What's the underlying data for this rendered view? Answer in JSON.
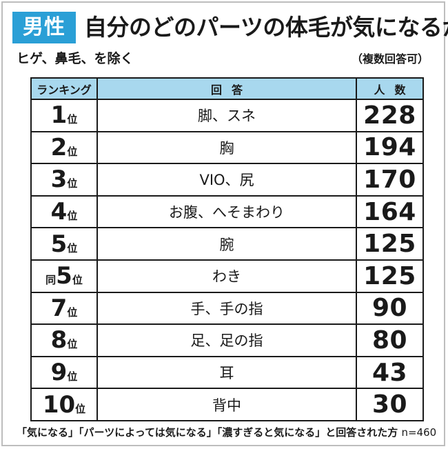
{
  "header": {
    "badge": "男性",
    "title": "自分のどのパーツの体毛が気になるか",
    "subtitle": "ヒゲ、鼻毛、を除く",
    "note": "（複数回答可）"
  },
  "table": {
    "headers": {
      "rank": "ランキング",
      "answer": "回答",
      "count": "人数"
    },
    "rank_unit": "位",
    "rows": [
      {
        "prefix": "",
        "rank": "1",
        "answer": "脚、スネ",
        "count": "228"
      },
      {
        "prefix": "",
        "rank": "2",
        "answer": "胸",
        "count": "194"
      },
      {
        "prefix": "",
        "rank": "3",
        "answer": "VIO、尻",
        "count": "170"
      },
      {
        "prefix": "",
        "rank": "4",
        "answer": "お腹、へそまわり",
        "count": "164"
      },
      {
        "prefix": "",
        "rank": "5",
        "answer": "腕",
        "count": "125"
      },
      {
        "prefix": "同",
        "rank": "5",
        "answer": "わき",
        "count": "125"
      },
      {
        "prefix": "",
        "rank": "7",
        "answer": "手、手の指",
        "count": "90"
      },
      {
        "prefix": "",
        "rank": "8",
        "answer": "足、足の指",
        "count": "80"
      },
      {
        "prefix": "",
        "rank": "9",
        "answer": "耳",
        "count": "43"
      },
      {
        "prefix": "",
        "rank": "10",
        "answer": "背中",
        "count": "30"
      }
    ]
  },
  "footnote": {
    "text": "「気になる」「パーツによっては気になる」「濃すぎると気になる」と回答された方",
    "sample": "n=460"
  },
  "colors": {
    "badge": "#2a9fd6",
    "header_row": "#a8d8ee"
  }
}
